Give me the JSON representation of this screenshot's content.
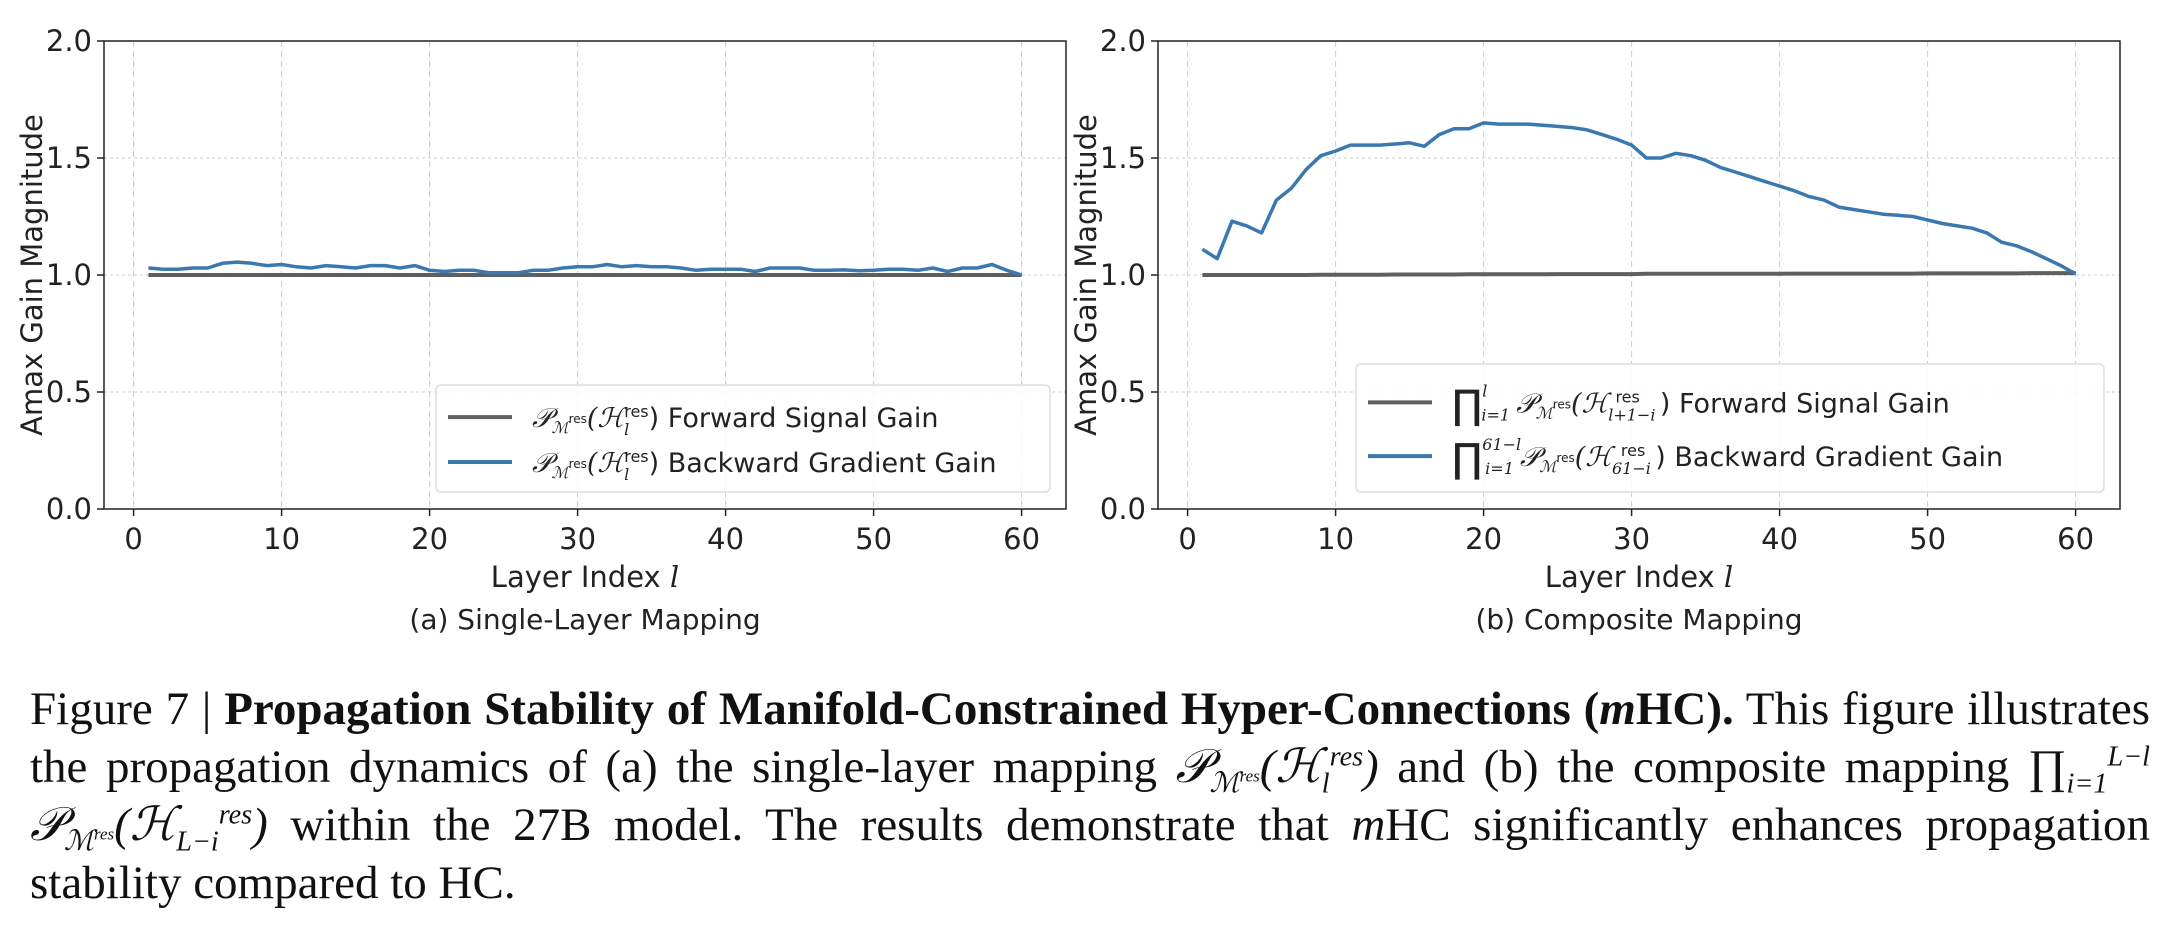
{
  "colors": {
    "forward": "#5f5f5f",
    "backward": "#3a78b0",
    "grid": "#cccccc"
  },
  "chart_data": [
    {
      "type": "line",
      "subtitle": "(a) Single-Layer Mapping",
      "xlabel": "Layer Index l",
      "ylabel": "Amax Gain Magnitude",
      "xlim": [
        -2,
        63
      ],
      "ylim": [
        0,
        2
      ],
      "xticks": [
        0,
        10,
        20,
        30,
        40,
        50,
        60
      ],
      "yticks": [
        "0.0",
        "0.5",
        "1.0",
        "1.5",
        "2.0"
      ],
      "grid": true,
      "legend_position": "lower-right",
      "series": [
        {
          "name": "𝒫_{ℳ^res}(ℋ_l^res) Forward Signal Gain",
          "legend_math": "𝒫ℳres(ℋlres)",
          "legend_text": "Forward Signal Gain",
          "color": "#5f5f5f",
          "x_start": 1,
          "values": [
            1.0,
            1.0,
            1.0,
            1.0,
            1.0,
            1.0,
            1.0,
            1.0,
            1.0,
            1.0,
            1.0,
            1.0,
            1.0,
            1.0,
            1.0,
            1.0,
            1.0,
            1.0,
            1.0,
            1.0,
            1.0,
            1.0,
            1.0,
            1.0,
            1.0,
            1.0,
            1.0,
            1.0,
            1.0,
            1.0,
            1.0,
            1.0,
            1.0,
            1.0,
            1.0,
            1.0,
            1.0,
            1.0,
            1.0,
            1.0,
            1.0,
            1.0,
            1.0,
            1.0,
            1.0,
            1.0,
            1.0,
            1.0,
            1.0,
            1.0,
            1.0,
            1.0,
            1.0,
            1.0,
            1.0,
            1.0,
            1.0,
            1.0,
            1.0,
            1.0
          ]
        },
        {
          "name": "𝒫_{ℳ^res}(ℋ_l^res) Backward Gradient Gain",
          "legend_math": "𝒫ℳres(ℋlres)",
          "legend_text": "Backward Gradient Gain",
          "color": "#3a78b0",
          "x_start": 1,
          "values": [
            1.03,
            1.025,
            1.025,
            1.03,
            1.03,
            1.05,
            1.055,
            1.05,
            1.04,
            1.045,
            1.035,
            1.03,
            1.04,
            1.035,
            1.03,
            1.04,
            1.04,
            1.03,
            1.04,
            1.02,
            1.015,
            1.02,
            1.02,
            1.01,
            1.01,
            1.01,
            1.02,
            1.02,
            1.03,
            1.035,
            1.035,
            1.045,
            1.035,
            1.04,
            1.035,
            1.035,
            1.03,
            1.02,
            1.025,
            1.025,
            1.025,
            1.015,
            1.03,
            1.03,
            1.03,
            1.02,
            1.02,
            1.022,
            1.018,
            1.02,
            1.025,
            1.025,
            1.02,
            1.03,
            1.015,
            1.03,
            1.03,
            1.045,
            1.02,
            1.0
          ]
        }
      ]
    },
    {
      "type": "line",
      "subtitle": "(b) Composite Mapping",
      "xlabel": "Layer Index l",
      "ylabel": "Amax Gain Magnitude",
      "xlim": [
        -2,
        63
      ],
      "ylim": [
        0,
        2
      ],
      "xticks": [
        0,
        10,
        20,
        30,
        40,
        50,
        60
      ],
      "yticks": [
        "0.0",
        "0.5",
        "1.0",
        "1.5",
        "2.0"
      ],
      "grid": true,
      "legend_position": "lower-right",
      "series": [
        {
          "name": "∏_{i=1}^{l} 𝒫_{ℳ^res}(ℋ_{l+1−i}^res) Forward Signal Gain",
          "legend_math": "∏i=1l 𝒫ℳres(ℋl+1−ires)",
          "legend_text": "Forward Signal Gain",
          "color": "#5f5f5f",
          "x_start": 1,
          "values": [
            1.0,
            1.0,
            1.0,
            1.0,
            1.0,
            1.0,
            1.0,
            1.0,
            1.001,
            1.001,
            1.001,
            1.001,
            1.001,
            1.002,
            1.002,
            1.002,
            1.002,
            1.002,
            1.003,
            1.003,
            1.003,
            1.003,
            1.003,
            1.003,
            1.004,
            1.004,
            1.004,
            1.004,
            1.004,
            1.004,
            1.005,
            1.005,
            1.005,
            1.005,
            1.005,
            1.005,
            1.005,
            1.005,
            1.005,
            1.005,
            1.006,
            1.006,
            1.006,
            1.006,
            1.006,
            1.006,
            1.006,
            1.006,
            1.006,
            1.007,
            1.007,
            1.007,
            1.007,
            1.007,
            1.007,
            1.007,
            1.008,
            1.008,
            1.008,
            1.008
          ]
        },
        {
          "name": "∏_{i=1}^{61−l} 𝒫_{ℳ^res}(ℋ_{61−i}^res) Backward Gradient Gain",
          "legend_math": "∏i=161−l 𝒫ℳres(ℋ61−ires)",
          "legend_text": "Backward Gradient Gain",
          "color": "#3a78b0",
          "x_start": 1,
          "values": [
            1.11,
            1.07,
            1.23,
            1.21,
            1.18,
            1.32,
            1.37,
            1.45,
            1.51,
            1.53,
            1.555,
            1.555,
            1.555,
            1.56,
            1.565,
            1.55,
            1.6,
            1.625,
            1.625,
            1.65,
            1.645,
            1.645,
            1.645,
            1.64,
            1.635,
            1.63,
            1.62,
            1.6,
            1.58,
            1.555,
            1.5,
            1.5,
            1.52,
            1.51,
            1.49,
            1.46,
            1.44,
            1.42,
            1.4,
            1.38,
            1.36,
            1.335,
            1.32,
            1.29,
            1.28,
            1.27,
            1.26,
            1.255,
            1.25,
            1.235,
            1.22,
            1.21,
            1.2,
            1.18,
            1.14,
            1.125,
            1.1,
            1.07,
            1.04,
            1.005
          ]
        }
      ]
    }
  ],
  "caption": {
    "label": "Figure 7 |",
    "title": "Propagation Stability of Manifold-Constrained Hyper-Connections (",
    "title_m": "m",
    "title_end": "HC).",
    "text1": "This figure illustrates the propagation dynamics of (a) the single-layer mapping",
    "math1": "𝒫ℳres(ℋlres)",
    "text2": "and (b) the composite mapping",
    "math2": "∏i=1L−l 𝒫ℳres(ℋL−ires)",
    "text3": "within the 27B model. The results demonstrate that",
    "text4_m": "m",
    "text4": "HC significantly enhances propagation stability compared to HC."
  }
}
